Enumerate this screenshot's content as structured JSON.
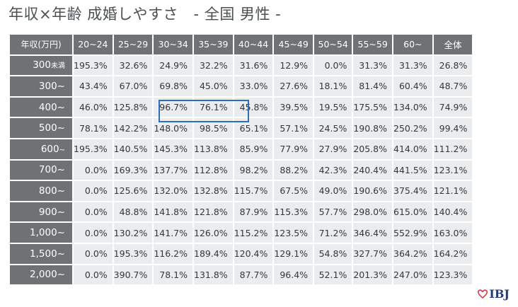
{
  "title": "年収×年齢 成婚しやすさ　- 全国 男性 -",
  "table": {
    "corner_label": "年収(万円)",
    "columns": [
      "20~24",
      "25~29",
      "30~34",
      "35~39",
      "40~44",
      "45~49",
      "50~54",
      "55~59",
      "60~",
      "全体"
    ],
    "rows": [
      {
        "label": "300",
        "unit": "未満",
        "values": [
          "195.3%",
          "32.6%",
          "24.9%",
          "32.2%",
          "31.6%",
          "12.9%",
          "0.0%",
          "31.3%",
          "31.3%",
          "26.8%"
        ]
      },
      {
        "label": "300~",
        "unit": "",
        "values": [
          "43.4%",
          "67.0%",
          "69.8%",
          "45.0%",
          "33.0%",
          "27.6%",
          "18.1%",
          "81.4%",
          "60.4%",
          "48.7%"
        ]
      },
      {
        "label": "400~",
        "unit": "",
        "values": [
          "46.0%",
          "125.8%",
          "96.7%",
          "76.1%",
          "45.8%",
          "39.5%",
          "19.5%",
          "175.5%",
          "134.0%",
          "74.9%"
        ]
      },
      {
        "label": "500~",
        "unit": "",
        "values": [
          "78.1%",
          "142.2%",
          "148.0%",
          "98.5%",
          "65.1%",
          "57.1%",
          "24.5%",
          "190.8%",
          "250.2%",
          "99.4%"
        ]
      },
      {
        "label": "600",
        "unit": "~",
        "values": [
          "195.3%",
          "140.5%",
          "145.3%",
          "113.8%",
          "85.9%",
          "77.9%",
          "27.9%",
          "205.8%",
          "414.0%",
          "111.2%"
        ]
      },
      {
        "label": "700~",
        "unit": "",
        "values": [
          "0.0%",
          "169.3%",
          "137.7%",
          "112.8%",
          "98.2%",
          "88.2%",
          "42.3%",
          "240.4%",
          "441.5%",
          "123.1%"
        ]
      },
      {
        "label": "800~",
        "unit": "",
        "values": [
          "0.0%",
          "125.6%",
          "132.0%",
          "132.8%",
          "115.7%",
          "67.5%",
          "49.0%",
          "190.6%",
          "375.4%",
          "121.1%"
        ]
      },
      {
        "label": "900~",
        "unit": "",
        "values": [
          "0.0%",
          "48.8%",
          "141.8%",
          "121.8%",
          "87.9%",
          "115.3%",
          "57.7%",
          "298.0%",
          "615.0%",
          "140.4%"
        ]
      },
      {
        "label": "1,000~",
        "unit": "",
        "values": [
          "0.0%",
          "130.2%",
          "141.7%",
          "126.0%",
          "115.2%",
          "123.5%",
          "71.2%",
          "346.4%",
          "552.9%",
          "163.0%"
        ]
      },
      {
        "label": "1,500~",
        "unit": "",
        "values": [
          "0.0%",
          "195.3%",
          "116.2%",
          "189.4%",
          "120.4%",
          "129.1%",
          "54.8%",
          "327.7%",
          "364.2%",
          "164.2%"
        ]
      },
      {
        "label": "2,000~",
        "unit": "",
        "values": [
          "0.0%",
          "390.7%",
          "78.1%",
          "131.8%",
          "87.7%",
          "96.4%",
          "52.1%",
          "201.3%",
          "247.0%",
          "123.3%"
        ]
      }
    ]
  },
  "logo": {
    "text": "IBJ",
    "color": "#233d7a",
    "heart_color": "#d23a4a"
  },
  "colors": {
    "header_bg": "#6e7275",
    "cell_bg": "#eaecee",
    "highlight": "#2f6eb7"
  }
}
